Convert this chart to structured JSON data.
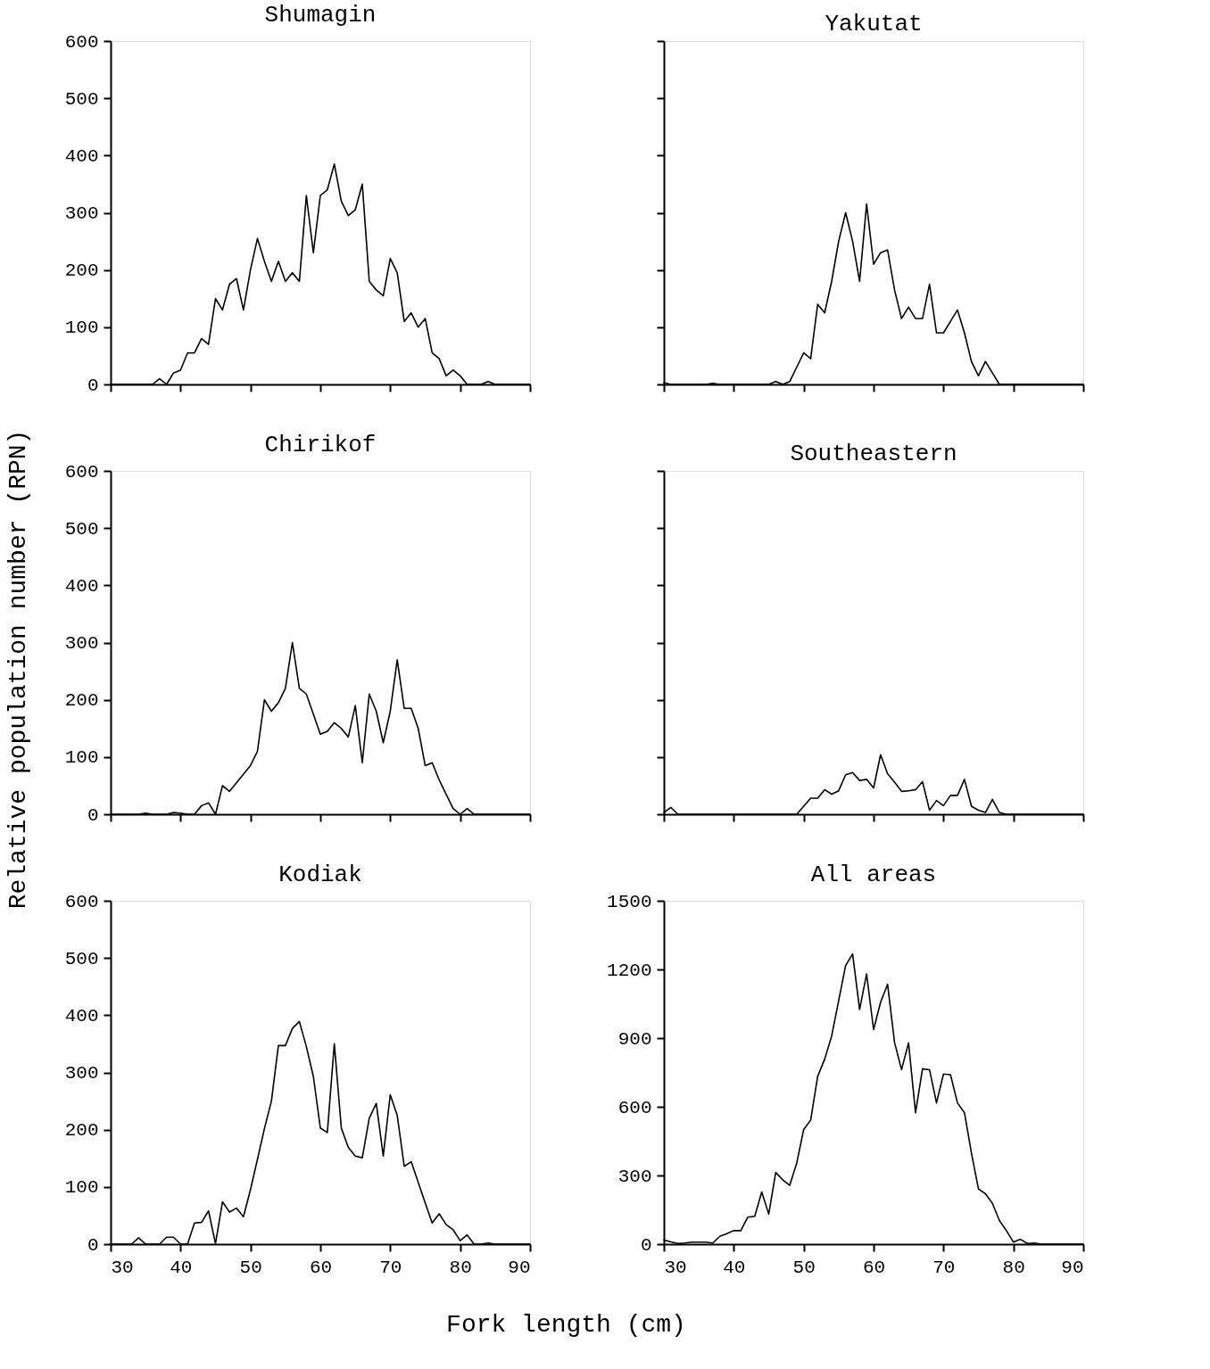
{
  "chart_data": [
    {
      "type": "line",
      "title": "Shumagin",
      "x": [
        30,
        31,
        32,
        33,
        34,
        35,
        36,
        37,
        38,
        39,
        40,
        41,
        42,
        43,
        44,
        45,
        46,
        47,
        48,
        49,
        50,
        51,
        52,
        53,
        54,
        55,
        56,
        57,
        58,
        59,
        60,
        61,
        62,
        63,
        64,
        65,
        66,
        67,
        68,
        69,
        70,
        71,
        72,
        73,
        74,
        75,
        76,
        77,
        78,
        79,
        80,
        81,
        82,
        83,
        84,
        85,
        86,
        87,
        88,
        89,
        90
      ],
      "series": [
        {
          "color": "#000000",
          "values": [
            0,
            0,
            0,
            0,
            0,
            0,
            0,
            10,
            0,
            20,
            25,
            55,
            55,
            80,
            70,
            150,
            130,
            175,
            185,
            130,
            200,
            255,
            215,
            180,
            215,
            180,
            195,
            180,
            330,
            230,
            330,
            340,
            385,
            320,
            295,
            305,
            350,
            180,
            165,
            155,
            220,
            195,
            110,
            125,
            100,
            115,
            55,
            45,
            15,
            25,
            15,
            0,
            0,
            0,
            5,
            0,
            0,
            0,
            0,
            0,
            0
          ]
        }
      ],
      "xlim": [
        30,
        90
      ],
      "xticks": [
        30,
        40,
        50,
        60,
        70,
        80,
        90
      ],
      "ylim": [
        0,
        600
      ],
      "yticks": [
        0,
        100,
        200,
        300,
        400,
        500,
        600
      ],
      "tick_labels": "y"
    },
    {
      "type": "line",
      "title": "Yakutat",
      "x": [
        30,
        31,
        32,
        33,
        34,
        35,
        36,
        37,
        38,
        39,
        40,
        41,
        42,
        43,
        44,
        45,
        46,
        47,
        48,
        49,
        50,
        51,
        52,
        53,
        54,
        55,
        56,
        57,
        58,
        59,
        60,
        61,
        62,
        63,
        64,
        65,
        66,
        67,
        68,
        69,
        70,
        71,
        72,
        73,
        74,
        75,
        76,
        77,
        78,
        79,
        80,
        81,
        82,
        83,
        84,
        85,
        86,
        87,
        88,
        89,
        90
      ],
      "series": [
        {
          "color": "#000000",
          "values": [
            3,
            0,
            0,
            0,
            0,
            0,
            0,
            2,
            0,
            0,
            0,
            0,
            0,
            0,
            0,
            0,
            5,
            0,
            5,
            30,
            55,
            45,
            140,
            125,
            180,
            250,
            300,
            250,
            180,
            315,
            210,
            230,
            235,
            165,
            115,
            135,
            115,
            115,
            175,
            90,
            90,
            110,
            130,
            90,
            40,
            15,
            40,
            20,
            0,
            0,
            0,
            0,
            0,
            0,
            0,
            0,
            0,
            0,
            0,
            0,
            0
          ]
        }
      ],
      "xlim": [
        30,
        90
      ],
      "xticks": [
        30,
        40,
        50,
        60,
        70,
        80,
        90
      ],
      "ylim": [
        0,
        600
      ],
      "yticks": [
        0,
        100,
        200,
        300,
        400,
        500,
        600
      ],
      "tick_labels": false
    },
    {
      "type": "line",
      "title": "Chirikof",
      "ylabel": "Relative population number (RPN)",
      "x": [
        30,
        31,
        32,
        33,
        34,
        35,
        36,
        37,
        38,
        39,
        40,
        41,
        42,
        43,
        44,
        45,
        46,
        47,
        48,
        49,
        50,
        51,
        52,
        53,
        54,
        55,
        56,
        57,
        58,
        59,
        60,
        61,
        62,
        63,
        64,
        65,
        66,
        67,
        68,
        69,
        70,
        71,
        72,
        73,
        74,
        75,
        76,
        77,
        78,
        79,
        80,
        81,
        82,
        83,
        84,
        85,
        86,
        87,
        88,
        89,
        90
      ],
      "series": [
        {
          "color": "#000000",
          "values": [
            0,
            0,
            0,
            0,
            0,
            2,
            0,
            0,
            0,
            3,
            2,
            0,
            0,
            15,
            20,
            0,
            50,
            40,
            55,
            70,
            85,
            110,
            200,
            180,
            195,
            220,
            300,
            220,
            210,
            175,
            140,
            145,
            160,
            150,
            135,
            190,
            90,
            210,
            180,
            125,
            180,
            270,
            185,
            185,
            150,
            85,
            90,
            60,
            35,
            10,
            0,
            10,
            0,
            0,
            0,
            0,
            0,
            0,
            0,
            0,
            0
          ]
        }
      ],
      "xlim": [
        30,
        90
      ],
      "xticks": [
        30,
        40,
        50,
        60,
        70,
        80,
        90
      ],
      "ylim": [
        0,
        600
      ],
      "yticks": [
        0,
        100,
        200,
        300,
        400,
        500,
        600
      ],
      "tick_labels": "y"
    },
    {
      "type": "line",
      "title": "Southeastern",
      "x": [
        30,
        31,
        32,
        33,
        34,
        35,
        36,
        37,
        38,
        39,
        40,
        41,
        42,
        43,
        44,
        45,
        46,
        47,
        48,
        49,
        50,
        51,
        52,
        53,
        54,
        55,
        56,
        57,
        58,
        59,
        60,
        61,
        62,
        63,
        64,
        65,
        66,
        67,
        68,
        69,
        70,
        71,
        72,
        73,
        74,
        75,
        76,
        77,
        78,
        79,
        80,
        81,
        82,
        83,
        84,
        85,
        86,
        87,
        88,
        89,
        90
      ],
      "series": [
        {
          "color": "#000000",
          "values": [
            3,
            12,
            0,
            0,
            0,
            0,
            0,
            0,
            0,
            0,
            0,
            0,
            0,
            0,
            0,
            0,
            0,
            0,
            0,
            0,
            14,
            28,
            28,
            43,
            35,
            41,
            69,
            73,
            59,
            61,
            46,
            104,
            71,
            56,
            40,
            41,
            43,
            57,
            7,
            24,
            15,
            33,
            33,
            61,
            14,
            7,
            3,
            26,
            3,
            0,
            0,
            0,
            0,
            0,
            0,
            0,
            0,
            0,
            0,
            0,
            0
          ]
        }
      ],
      "xlim": [
        30,
        90
      ],
      "xticks": [
        30,
        40,
        50,
        60,
        70,
        80,
        90
      ],
      "ylim": [
        0,
        600
      ],
      "yticks": [
        0,
        100,
        200,
        300,
        400,
        500,
        600
      ],
      "tick_labels": false
    },
    {
      "type": "line",
      "title": "Kodiak",
      "xlabel": "Fork length (cm)",
      "x": [
        30,
        31,
        32,
        33,
        34,
        35,
        36,
        37,
        38,
        39,
        40,
        41,
        42,
        43,
        44,
        45,
        46,
        47,
        48,
        49,
        50,
        51,
        52,
        53,
        54,
        55,
        56,
        57,
        58,
        59,
        60,
        61,
        62,
        63,
        64,
        65,
        66,
        67,
        68,
        69,
        70,
        71,
        72,
        73,
        74,
        75,
        76,
        77,
        78,
        79,
        80,
        81,
        82,
        83,
        84,
        85,
        86,
        87,
        88,
        89,
        90
      ],
      "series": [
        {
          "color": "#000000",
          "values": [
            0,
            0,
            0,
            0,
            11,
            0,
            0,
            0,
            12,
            12,
            0,
            0,
            37,
            38,
            58,
            1,
            74,
            56,
            63,
            48,
            95,
            148,
            202,
            250,
            347,
            347,
            377,
            389,
            345,
            293,
            203,
            195,
            350,
            203,
            169,
            154,
            151,
            220,
            246,
            154,
            261,
            225,
            136,
            144,
            108,
            72,
            37,
            53,
            34,
            25,
            6,
            16,
            0,
            0,
            2,
            0,
            0,
            0,
            0,
            0,
            0
          ]
        }
      ],
      "xlim": [
        30,
        90
      ],
      "xticks": [
        30,
        40,
        50,
        60,
        70,
        80,
        90
      ],
      "ylim": [
        0,
        600
      ],
      "yticks": [
        0,
        100,
        200,
        300,
        400,
        500,
        600
      ]
    },
    {
      "type": "line",
      "title": "All areas",
      "x": [
        30,
        31,
        32,
        33,
        34,
        35,
        36,
        37,
        38,
        39,
        40,
        41,
        42,
        43,
        44,
        45,
        46,
        47,
        48,
        49,
        50,
        51,
        52,
        53,
        54,
        55,
        56,
        57,
        58,
        59,
        60,
        61,
        62,
        63,
        64,
        65,
        66,
        67,
        68,
        69,
        70,
        71,
        72,
        73,
        74,
        75,
        76,
        77,
        78,
        79,
        80,
        81,
        82,
        83,
        84,
        85,
        86,
        87,
        88,
        89,
        90
      ],
      "series": [
        {
          "color": "#000000",
          "values": [
            18,
            10,
            3,
            5,
            9,
            9,
            9,
            5,
            34,
            46,
            59,
            59,
            118,
            122,
            228,
            131,
            313,
            281,
            257,
            354,
            501,
            542,
            733,
            808,
            909,
            1063,
            1217,
            1268,
            1025,
            1180,
            937,
            1057,
            1135,
            881,
            762,
            879,
            574,
            766,
            762,
            617,
            743,
            740,
            617,
            574,
            398,
            241,
            220,
            178,
            103,
            59,
            9,
            21,
            3,
            5,
            0,
            0,
            0,
            0,
            0,
            0,
            0
          ]
        }
      ],
      "xlim": [
        30,
        90
      ],
      "xticks": [
        30,
        40,
        50,
        60,
        70,
        80,
        90
      ],
      "ylim": [
        0,
        1500
      ],
      "yticks": [
        0,
        300,
        600,
        900,
        1200,
        1500
      ]
    }
  ]
}
